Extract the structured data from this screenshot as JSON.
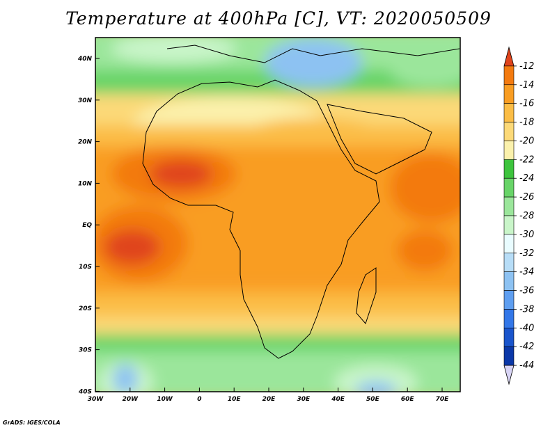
{
  "title": "Temperature at 400hPa [C], VT: 2020050509",
  "credit": "GrADS: IGES/COLA",
  "lat_labels": [
    "40N",
    "30N",
    "20N",
    "10N",
    "EQ",
    "10S",
    "20S",
    "30S",
    "40S"
  ],
  "lon_labels": [
    "30W",
    "20W",
    "10W",
    "0",
    "10E",
    "20E",
    "30E",
    "40E",
    "50E",
    "60E",
    "70E"
  ],
  "colorbar": {
    "labels": [
      "-12",
      "-14",
      "-16",
      "-18",
      "-20",
      "-22",
      "-24",
      "-26",
      "-28",
      "-30",
      "-32",
      "-34",
      "-36",
      "-38",
      "-40",
      "-42",
      "-44"
    ],
    "colors": [
      "#e0441c",
      "#f37a10",
      "#f99d22",
      "#fbbd46",
      "#fcd978",
      "#fbf1ac",
      "#3dc43d",
      "#68d468",
      "#9be69b",
      "#c9f5c9",
      "#e9fcff",
      "#b7ddf7",
      "#8dc2f2",
      "#5e9ef0",
      "#3377e8",
      "#1a55cc",
      "#0b38a8",
      "#081a78"
    ]
  },
  "map": {
    "region": "Africa",
    "lon_range": [
      -30,
      75
    ],
    "lat_range": [
      -40,
      45
    ],
    "variable": "Temperature at 400hPa",
    "units": "C"
  }
}
